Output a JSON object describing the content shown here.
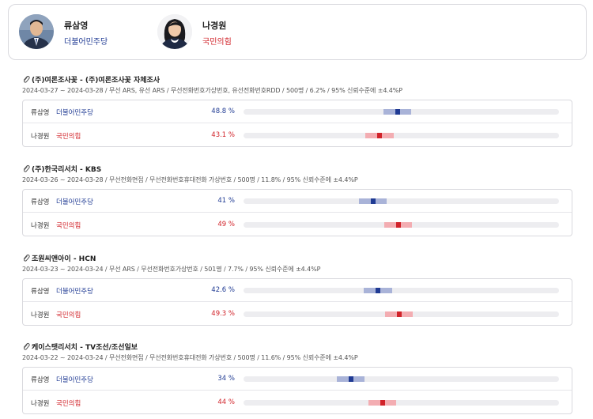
{
  "candidates": [
    {
      "name": "류삼영",
      "party": "더불어민주당",
      "color": "#1f3a93"
    },
    {
      "name": "나경원",
      "party": "국민의힘",
      "color": "#d12229"
    }
  ],
  "colors": {
    "dem_point": "#1f3a93",
    "dem_ci": "#a9b3d8",
    "ppp_point": "#d12229",
    "ppp_ci": "#f3adb2",
    "track": "#ededf0"
  },
  "icons": {
    "poll": "paperclip-icon",
    "avatar": "person-photo"
  },
  "polls": [
    {
      "title": "(주)여론조사꽃 - (주)여론조사꽃 자체조사",
      "meta": "2024-03-27 ~ 2024-03-28 / 무선 ARS, 유선 ARS / 무선전화번호가상번호, 유선전화번호RDD / 500명 / 6.2% / 95% 신뢰수준에 ±4.4%P",
      "margin": 4.4,
      "rows": [
        {
          "name": "류삼영",
          "party": "더불어민주당",
          "value": 48.8,
          "label": "48.8 %"
        },
        {
          "name": "나경원",
          "party": "국민의힘",
          "value": 43.1,
          "label": "43.1 %"
        }
      ]
    },
    {
      "title": "(주)한국리서치 - KBS",
      "meta": "2024-03-26 ~ 2024-03-28 / 무선전화면접 / 무선전화번호휴대전화 가상번호 / 500명 / 11.8% / 95% 신뢰수준에 ±4.4%P",
      "margin": 4.4,
      "rows": [
        {
          "name": "류삼영",
          "party": "더불어민주당",
          "value": 41,
          "label": "41 %"
        },
        {
          "name": "나경원",
          "party": "국민의힘",
          "value": 49,
          "label": "49 %"
        }
      ]
    },
    {
      "title": "조원씨앤아이 - HCN",
      "meta": "2024-03-23 ~ 2024-03-24 / 무선 ARS / 무선전화번호가상번호 / 501명 / 7.7% / 95% 신뢰수준에 ±4.4%P",
      "margin": 4.4,
      "rows": [
        {
          "name": "류삼영",
          "party": "더불어민주당",
          "value": 42.6,
          "label": "42.6 %"
        },
        {
          "name": "나경원",
          "party": "국민의힘",
          "value": 49.3,
          "label": "49.3 %"
        }
      ]
    },
    {
      "title": "케이스탯리서치 - TV조선/조선일보",
      "meta": "2024-03-22 ~ 2024-03-24 / 무선전화면접 / 무선전화번호휴대전화 가상번호 / 500명 / 11.6% / 95% 신뢰수준에 ±4.4%P",
      "margin": 4.4,
      "rows": [
        {
          "name": "류삼영",
          "party": "더불어민주당",
          "value": 34,
          "label": "34 %"
        },
        {
          "name": "나경원",
          "party": "국민의힘",
          "value": 44,
          "label": "44 %"
        }
      ]
    }
  ]
}
